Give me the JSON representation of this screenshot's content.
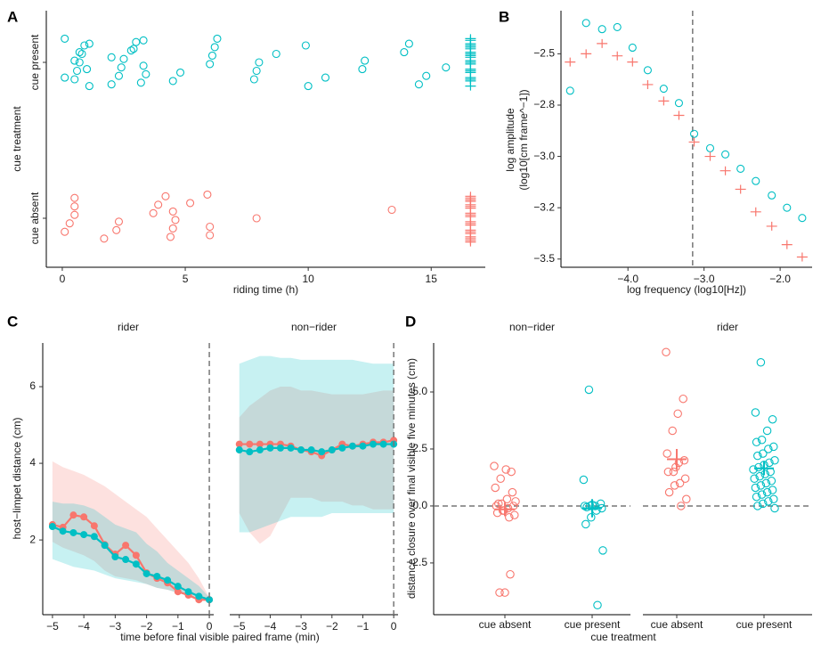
{
  "chart_data": [
    {
      "type": "strip",
      "label": "A",
      "xlabel": "riding time (h)",
      "ylabel": "cue treatment",
      "categories": [
        "cue absent",
        "cue present"
      ],
      "xlim": [
        -0.65,
        17.2
      ],
      "xticks": [
        0,
        5,
        10,
        15
      ],
      "series": [
        {
          "category": 1,
          "color": "#00BFC4",
          "marker": "circle",
          "values": [
            0.1,
            0.5,
            0.6,
            0.7,
            0.8,
            0.9,
            1.1,
            0.1,
            1.0,
            0.5,
            0.7,
            1.1,
            2.0,
            2.3,
            2.4,
            2.5,
            2.8,
            3.0,
            3.2,
            3.4,
            3.3,
            2.0,
            2.9,
            3.3,
            4.5,
            4.8,
            6.0,
            6.1,
            6.2,
            6.3,
            7.8,
            7.9,
            8.0,
            8.7,
            9.9,
            10.0,
            10.7,
            12.2,
            12.3,
            13.9,
            14.1,
            14.5,
            14.8,
            15.6
          ]
        },
        {
          "category": 1,
          "color": "#00BFC4",
          "marker": "plus",
          "values": [
            16.6,
            16.6,
            16.6,
            16.6,
            16.6,
            16.6,
            16.6,
            16.6,
            16.6,
            16.6,
            16.6,
            16.6,
            16.6,
            16.6,
            16.6,
            16.6,
            16.6,
            16.6,
            16.6,
            16.6
          ]
        },
        {
          "category": 0,
          "color": "#F8766D",
          "marker": "circle",
          "values": [
            0.1,
            0.3,
            0.5,
            0.5,
            0.5,
            1.7,
            2.2,
            2.3,
            3.7,
            3.9,
            4.2,
            4.4,
            4.5,
            4.6,
            4.5,
            5.2,
            5.9,
            6.0,
            6.0,
            7.9,
            13.4
          ]
        },
        {
          "category": 0,
          "color": "#F8766D",
          "marker": "plus",
          "values": [
            16.6,
            16.6,
            16.6,
            16.6,
            16.6,
            16.6,
            16.6,
            16.6,
            16.6,
            16.6,
            16.6,
            16.6,
            16.6,
            16.6,
            16.6,
            16.6,
            16.6,
            16.6,
            16.6,
            16.6
          ]
        }
      ]
    },
    {
      "type": "scatter",
      "label": "B",
      "xlabel": "log frequency (log10[Hz])",
      "ylabel": [
        "log amplitude",
        "(log10[cm frame^−1])"
      ],
      "xlim": [
        -4.88,
        -1.58
      ],
      "ylim": [
        -3.54,
        -2.29
      ],
      "xticks": [
        {
          "value": -4,
          "label": "−4.0"
        },
        {
          "value": -3,
          "label": "−3.0"
        },
        {
          "value": -2,
          "label": "−2.0"
        }
      ],
      "yticks": [
        {
          "value": -2.5,
          "label": "−2.5"
        },
        {
          "value": -2.75,
          "label": "−2.8"
        },
        {
          "value": -3,
          "label": "−3.0"
        },
        {
          "value": -3.25,
          "label": "−3.2"
        },
        {
          "value": -3.5,
          "label": "−3.5"
        }
      ],
      "vline": -3.15,
      "series": [
        {
          "color": "#00BFC4",
          "marker": "circle",
          "x": [
            -4.76,
            -4.55,
            -4.34,
            -4.14,
            -3.94,
            -3.74,
            -3.53,
            -3.33,
            -3.13,
            -2.92,
            -2.72,
            -2.52,
            -2.32,
            -2.11,
            -1.91,
            -1.71
          ],
          "values": [
            -2.68,
            -2.35,
            -2.38,
            -2.37,
            -2.47,
            -2.58,
            -2.67,
            -2.74,
            -2.89,
            -2.96,
            -2.99,
            -3.06,
            -3.12,
            -3.19,
            -3.25,
            -3.3
          ]
        },
        {
          "color": "#F8766D",
          "marker": "plus",
          "x": [
            -4.76,
            -4.55,
            -4.34,
            -4.14,
            -3.94,
            -3.74,
            -3.53,
            -3.33,
            -3.13,
            -2.92,
            -2.72,
            -2.52,
            -2.32,
            -2.11,
            -1.91,
            -1.71
          ],
          "values": [
            -2.54,
            -2.5,
            -2.45,
            -2.51,
            -2.54,
            -2.65,
            -2.73,
            -2.8,
            -2.93,
            -3.0,
            -3.07,
            -3.16,
            -3.27,
            -3.34,
            -3.43,
            -3.49
          ]
        }
      ]
    },
    {
      "type": "line",
      "label": "C",
      "xlabel": "time before final visible paired frame (min)",
      "ylabel": "host−limpet distance (cm)",
      "xlim": [
        -5.31,
        0.14
      ],
      "ylim": [
        0.05,
        7.14
      ],
      "xticks": [
        {
          "value": -5,
          "label": "−5"
        },
        {
          "value": -4,
          "label": "−4"
        },
        {
          "value": -3,
          "label": "−3"
        },
        {
          "value": -2,
          "label": "−2"
        },
        {
          "value": -1,
          "label": "−1"
        },
        0
      ],
      "yticks": [
        2,
        4,
        6
      ],
      "vline": 0,
      "x": [
        -5,
        -4.667,
        -4.333,
        -4,
        -3.667,
        -3.333,
        -3,
        -2.667,
        -2.333,
        -2,
        -1.667,
        -1.333,
        -1,
        -0.667,
        -0.333,
        0
      ],
      "facets": [
        {
          "title": "rider",
          "series": [
            {
              "color": "#F8766D",
              "values": [
                2.4,
                2.33,
                2.65,
                2.6,
                2.37,
                1.88,
                1.63,
                1.86,
                1.6,
                1.14,
                1.0,
                0.88,
                0.65,
                0.56,
                0.44,
                0.44
              ],
              "lower": [
                1.95,
                1.8,
                1.7,
                1.6,
                1.45,
                1.2,
                1.05,
                1.0,
                0.95,
                0.85,
                0.75,
                0.7,
                0.62,
                0.55,
                0.5,
                0.44
              ],
              "upper": [
                4.05,
                3.9,
                3.8,
                3.7,
                3.55,
                3.4,
                3.2,
                3.0,
                2.8,
                2.6,
                2.3,
                2.0,
                1.7,
                1.4,
                1.0,
                0.5
              ]
            },
            {
              "color": "#00BFC4",
              "values": [
                2.35,
                2.23,
                2.19,
                2.14,
                2.09,
                1.86,
                1.56,
                1.49,
                1.37,
                1.12,
                1.05,
                0.95,
                0.79,
                0.65,
                0.53,
                0.44
              ],
              "lower": [
                1.5,
                1.4,
                1.3,
                1.25,
                1.2,
                1.1,
                1.0,
                0.95,
                0.9,
                0.85,
                0.75,
                0.7,
                0.62,
                0.55,
                0.5,
                0.44
              ],
              "upper": [
                3.0,
                2.95,
                2.95,
                2.9,
                2.8,
                2.6,
                2.4,
                2.3,
                2.2,
                1.9,
                1.7,
                1.4,
                1.2,
                1.0,
                0.8,
                0.5
              ]
            }
          ]
        },
        {
          "title": "non−rider",
          "series": [
            {
              "color": "#F8766D",
              "values": [
                4.5,
                4.5,
                4.5,
                4.5,
                4.5,
                4.45,
                4.35,
                4.3,
                4.2,
                4.35,
                4.5,
                4.45,
                4.5,
                4.55,
                4.55,
                4.6
              ],
              "lower": [
                2.7,
                2.2,
                1.9,
                2.1,
                2.6,
                3.1,
                3.1,
                3.1,
                3.0,
                3.0,
                3.0,
                2.9,
                2.9,
                2.8,
                2.8,
                2.8
              ],
              "upper": [
                5.2,
                5.5,
                5.7,
                5.9,
                6.0,
                6.0,
                5.9,
                5.9,
                5.85,
                5.8,
                5.8,
                5.8,
                5.8,
                5.85,
                5.9,
                5.9
              ]
            },
            {
              "color": "#00BFC4",
              "values": [
                4.35,
                4.3,
                4.35,
                4.4,
                4.4,
                4.4,
                4.35,
                4.35,
                4.3,
                4.35,
                4.4,
                4.45,
                4.45,
                4.5,
                4.5,
                4.5
              ],
              "lower": [
                2.2,
                2.2,
                2.3,
                2.4,
                2.5,
                2.6,
                2.6,
                2.6,
                2.6,
                2.7,
                2.7,
                2.7,
                2.7,
                2.7,
                2.7,
                2.7
              ],
              "upper": [
                6.6,
                6.7,
                6.8,
                6.8,
                6.75,
                6.75,
                6.7,
                6.7,
                6.7,
                6.7,
                6.7,
                6.7,
                6.65,
                6.6,
                6.6,
                6.6
              ]
            }
          ]
        }
      ]
    },
    {
      "type": "jitter",
      "label": "D",
      "xlabel": "cue treatment",
      "ylabel": "distance closure over final visible five minutes (cm)",
      "categories": [
        "cue absent",
        "cue present"
      ],
      "colors": [
        "#F8766D",
        "#00BFC4"
      ],
      "ylim": [
        -4.77,
        7.15
      ],
      "yticks": [
        {
          "value": -2.5,
          "label": "−2.5"
        },
        {
          "value": 0,
          "label": "0.0"
        },
        2.5,
        {
          "value": 5,
          "label": "5.0"
        }
      ],
      "hline": 0,
      "facets": [
        {
          "title": "non−rider",
          "groups": [
            [
              1.75,
              1.5,
              1.6,
              1.2,
              0.8,
              0.6,
              0.3,
              0.1,
              0.0,
              0.0,
              -0.1,
              -0.2,
              -0.3,
              -0.4,
              -0.5,
              -0.2,
              0.1,
              0.2,
              -3.0,
              -3.8,
              -3.8
            ],
            [
              5.1,
              1.15,
              0.1,
              0.0,
              0.0,
              0.0,
              -0.1,
              -0.2,
              -0.5,
              -0.8,
              -1.95,
              -4.35,
              0.05,
              -0.05
            ]
          ],
          "means": [
            -0.15,
            -0.1
          ],
          "se": [
            0.3,
            0.4
          ]
        },
        {
          "title": "rider",
          "groups": [
            [
              6.75,
              4.7,
              4.05,
              3.3,
              2.3,
              2.0,
              1.9,
              1.5,
              1.5,
              1.2,
              1.0,
              0.9,
              0.6,
              0.3,
              0.0,
              1.7
            ],
            [
              6.3,
              4.1,
              3.8,
              3.3,
              2.9,
              2.8,
              2.6,
              2.5,
              2.3,
              2.2,
              2.0,
              1.9,
              1.8,
              1.7,
              1.6,
              1.5,
              1.4,
              1.3,
              1.2,
              1.1,
              1.0,
              0.9,
              0.8,
              0.7,
              0.6,
              0.5,
              0.4,
              0.3,
              0.2,
              0.1,
              0.0,
              -0.1
            ]
          ],
          "means": [
            2.05,
            1.65
          ],
          "se": [
            0.45,
            0.3
          ]
        }
      ]
    }
  ]
}
